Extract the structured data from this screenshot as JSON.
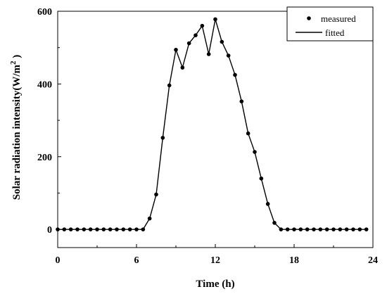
{
  "chart_data": {
    "type": "line",
    "title": "",
    "xlabel": "Time (h)",
    "ylabel_main": "Solar radiation intensity(W/m",
    "ylabel_sup": "2",
    "ylabel_end": " )",
    "xlim": [
      0,
      24
    ],
    "ylim": [
      -50,
      600
    ],
    "xticks": [
      0,
      6,
      12,
      18,
      24
    ],
    "yticks": [
      0,
      200,
      400,
      600
    ],
    "grid": false,
    "legend_position": "top-right",
    "series": [
      {
        "name": "measured",
        "style": "markers",
        "x": [
          0,
          0.5,
          1,
          1.5,
          2,
          2.5,
          3,
          3.5,
          4,
          4.5,
          5,
          5.5,
          6,
          6.5,
          7,
          7.5,
          8,
          8.5,
          9,
          9.5,
          10,
          10.5,
          11,
          11.5,
          12,
          12.5,
          13,
          13.5,
          14,
          14.5,
          15,
          15.5,
          16,
          16.5,
          17,
          17.5,
          18,
          18.5,
          19,
          19.5,
          20,
          20.5,
          21,
          21.5,
          22,
          22.5,
          23,
          23.5
        ],
        "y": [
          0,
          0,
          0,
          0,
          0,
          0,
          0,
          0,
          0,
          0,
          0,
          0,
          0,
          0,
          30,
          96,
          252,
          396,
          494,
          445,
          512,
          534,
          560,
          482,
          578,
          516,
          478,
          425,
          352,
          264,
          213,
          140,
          70,
          18,
          0,
          0,
          0,
          0,
          0,
          0,
          0,
          0,
          0,
          0,
          0,
          0,
          0,
          0
        ]
      },
      {
        "name": "fitted",
        "style": "line",
        "x": [
          0,
          0.5,
          1,
          1.5,
          2,
          2.5,
          3,
          3.5,
          4,
          4.5,
          5,
          5.5,
          6,
          6.5,
          7,
          7.5,
          8,
          8.5,
          9,
          9.5,
          10,
          10.5,
          11,
          11.5,
          12,
          12.5,
          13,
          13.5,
          14,
          14.5,
          15,
          15.5,
          16,
          16.5,
          17,
          17.5,
          18,
          18.5,
          19,
          19.5,
          20,
          20.5,
          21,
          21.5,
          22,
          22.5,
          23,
          23.5
        ],
        "y": [
          0,
          0,
          0,
          0,
          0,
          0,
          0,
          0,
          0,
          0,
          0,
          0,
          0,
          0,
          30,
          96,
          252,
          396,
          494,
          445,
          512,
          534,
          560,
          482,
          578,
          516,
          478,
          425,
          352,
          264,
          213,
          140,
          70,
          18,
          0,
          0,
          0,
          0,
          0,
          0,
          0,
          0,
          0,
          0,
          0,
          0,
          0,
          0
        ]
      }
    ]
  },
  "legend": {
    "measured_label": "measured",
    "fitted_label": "fitted"
  }
}
